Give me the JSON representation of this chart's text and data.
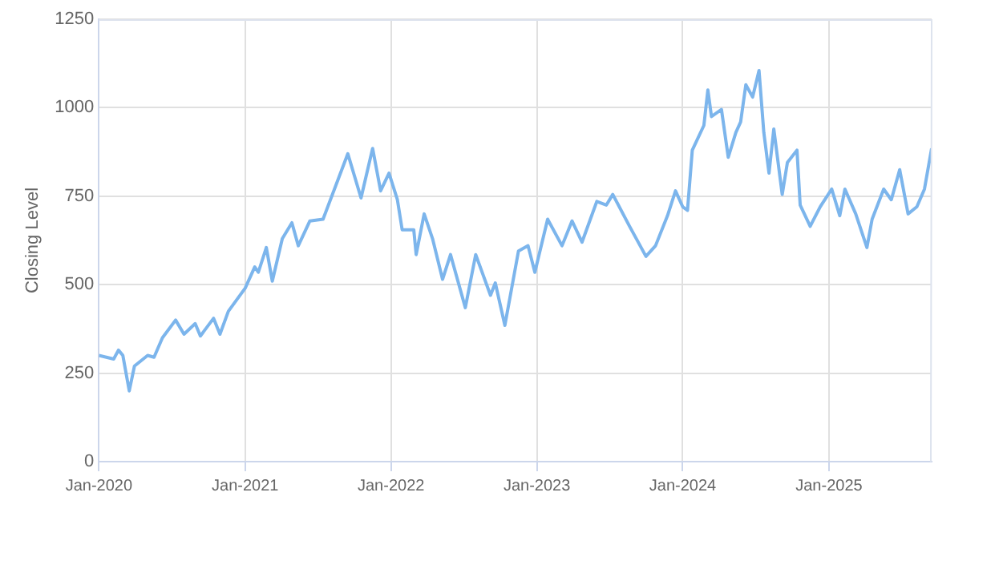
{
  "chart_data": {
    "type": "line",
    "ylabel": "Closing Level",
    "x": [
      "2020-01-01",
      "2020-02-07",
      "2020-02-19",
      "2020-03-01",
      "2020-03-17",
      "2020-03-30",
      "2020-05-02",
      "2020-05-18",
      "2020-06-08",
      "2020-07-11",
      "2020-08-01",
      "2020-08-29",
      "2020-09-11",
      "2020-10-14",
      "2020-10-30",
      "2020-11-20",
      "2021-01-01",
      "2021-01-25",
      "2021-02-03",
      "2021-02-23",
      "2021-03-10",
      "2021-04-04",
      "2021-04-28",
      "2021-05-14",
      "2021-06-12",
      "2021-07-15",
      "2021-09-15",
      "2021-10-18",
      "2021-11-16",
      "2021-12-06",
      "2021-12-27",
      "2022-01-17",
      "2022-01-29",
      "2022-02-27",
      "2022-03-05",
      "2022-03-25",
      "2022-04-15",
      "2022-05-10",
      "2022-05-30",
      "2022-07-06",
      "2022-08-01",
      "2022-09-07",
      "2022-09-19",
      "2022-10-13",
      "2022-10-30",
      "2022-11-16",
      "2022-12-10",
      "2022-12-27",
      "2023-01-28",
      "2023-03-05",
      "2023-03-30",
      "2023-04-24",
      "2023-05-31",
      "2023-06-24",
      "2023-07-10",
      "2023-08-21",
      "2023-10-01",
      "2023-10-25",
      "2023-11-24",
      "2023-12-14",
      "2024-01-01",
      "2024-01-13",
      "2024-01-25",
      "2024-02-23",
      "2024-03-04",
      "2024-03-13",
      "2024-04-07",
      "2024-04-24",
      "2024-05-13",
      "2024-05-25",
      "2024-06-07",
      "2024-06-24",
      "2024-07-10",
      "2024-07-22",
      "2024-08-04",
      "2024-08-16",
      "2024-09-06",
      "2024-09-19",
      "2024-10-13",
      "2024-10-21",
      "2024-11-15",
      "2024-12-10",
      "2025-01-08",
      "2025-01-28",
      "2025-02-10",
      "2025-03-09",
      "2025-04-06",
      "2025-04-19",
      "2025-05-18",
      "2025-06-06",
      "2025-06-27",
      "2025-07-18",
      "2025-08-09",
      "2025-08-28",
      "2025-09-15"
    ],
    "series": [
      {
        "color": "#7cb5ec",
        "values": [
          300,
          290,
          315,
          300,
          200,
          270,
          300,
          295,
          350,
          400,
          360,
          390,
          355,
          405,
          360,
          425,
          490,
          550,
          535,
          605,
          510,
          630,
          675,
          610,
          680,
          685,
          870,
          745,
          885,
          765,
          815,
          740,
          655,
          655,
          585,
          700,
          630,
          515,
          585,
          435,
          585,
          470,
          505,
          385,
          490,
          595,
          610,
          535,
          685,
          610,
          680,
          620,
          735,
          725,
          755,
          665,
          580,
          610,
          695,
          765,
          720,
          710,
          880,
          950,
          1050,
          975,
          995,
          860,
          930,
          960,
          1065,
          1030,
          1105,
          930,
          815,
          940,
          755,
          845,
          880,
          725,
          665,
          720,
          770,
          695,
          770,
          700,
          605,
          685,
          770,
          740,
          825,
          700,
          720,
          770,
          885
        ]
      }
    ],
    "xlim": [
      "2020-01-01",
      "2025-09-15"
    ],
    "xticks": [
      {
        "value": "2020-01-01",
        "label": "Jan-2020"
      },
      {
        "value": "2021-01-01",
        "label": "Jan-2021"
      },
      {
        "value": "2022-01-01",
        "label": "Jan-2022"
      },
      {
        "value": "2023-01-01",
        "label": "Jan-2023"
      },
      {
        "value": "2024-01-01",
        "label": "Jan-2024"
      },
      {
        "value": "2025-01-01",
        "label": "Jan-2025"
      }
    ],
    "ylim": [
      0,
      1250
    ],
    "yticks": [
      0,
      250,
      500,
      750,
      1000,
      1250
    ],
    "grid": true,
    "legend": false,
    "marker": "none",
    "line_style": "solid"
  }
}
